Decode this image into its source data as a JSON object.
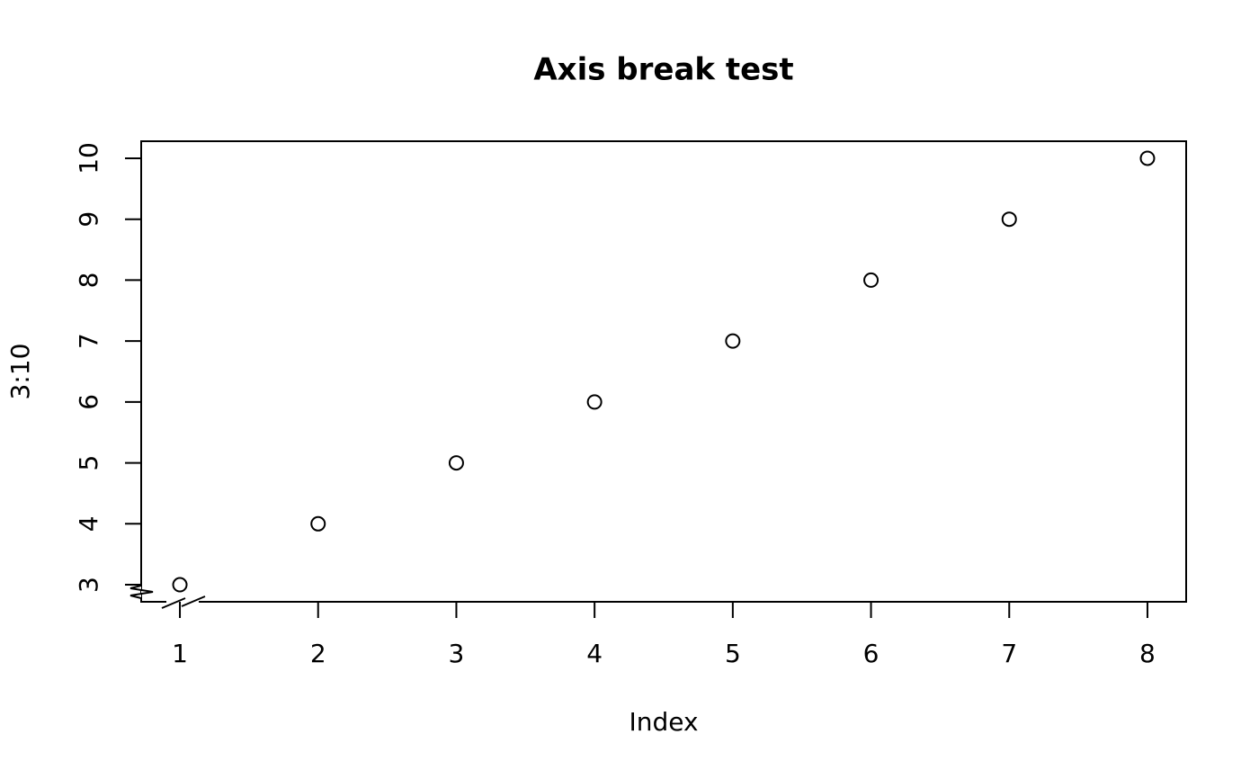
{
  "chart_data": {
    "type": "scatter",
    "title": "Axis break test",
    "x_label": "Index",
    "y_label": "3:10",
    "x": [
      1,
      2,
      3,
      4,
      5,
      6,
      7,
      8
    ],
    "values": [
      3,
      4,
      5,
      6,
      7,
      8,
      9,
      10
    ],
    "color": "#000000",
    "xlim": [
      0.72,
      8.28
    ],
    "ylim": [
      2.72,
      10.28
    ],
    "xticks": [
      1,
      2,
      3,
      4,
      5,
      6,
      7,
      8
    ],
    "yticks": [
      3,
      4,
      5,
      6,
      7,
      8,
      9,
      10
    ]
  }
}
